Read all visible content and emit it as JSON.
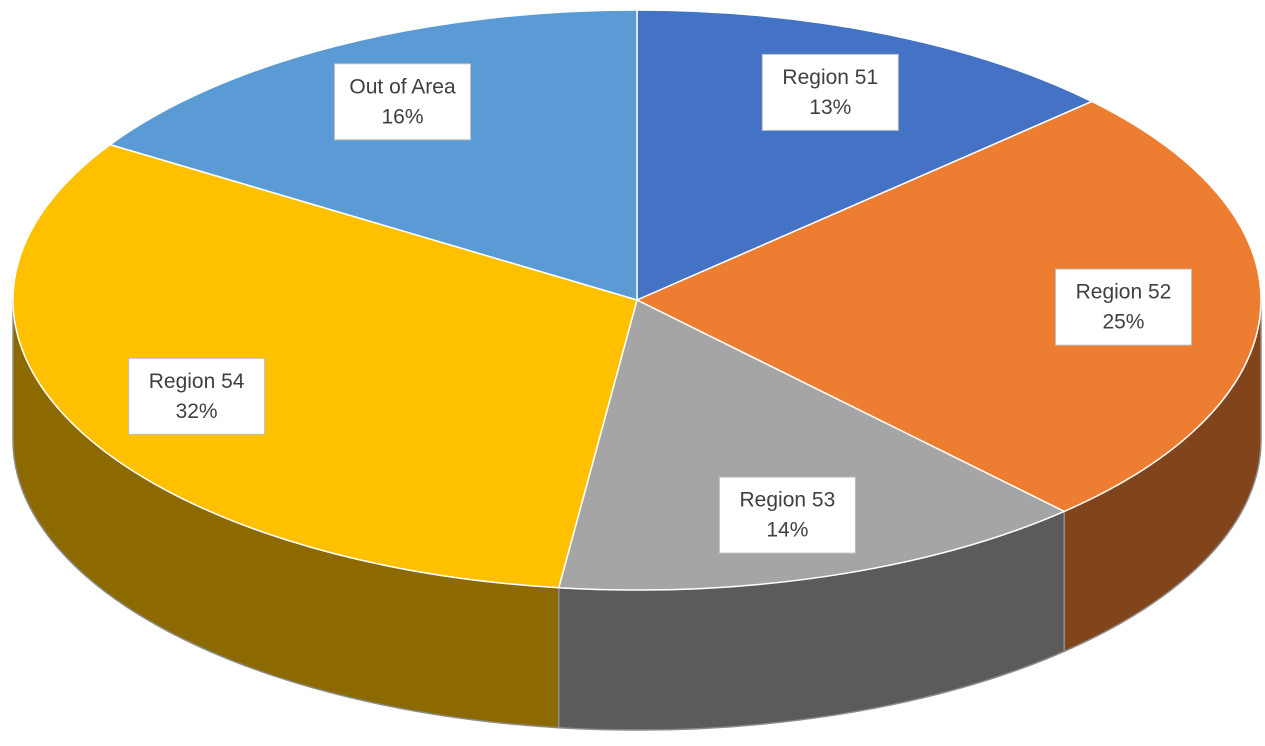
{
  "chart_data": {
    "type": "pie",
    "categories": [
      "Region 51",
      "Region 52",
      "Region 53",
      "Region 54",
      "Out of Area"
    ],
    "values": [
      13,
      25,
      14,
      32,
      16
    ],
    "value_labels": [
      "13%",
      "25%",
      "14%",
      "32%",
      "16%"
    ],
    "colors": [
      "#4472c4",
      "#ed7d31",
      "#a5a5a5",
      "#ffc000",
      "#5b9bd5"
    ]
  }
}
